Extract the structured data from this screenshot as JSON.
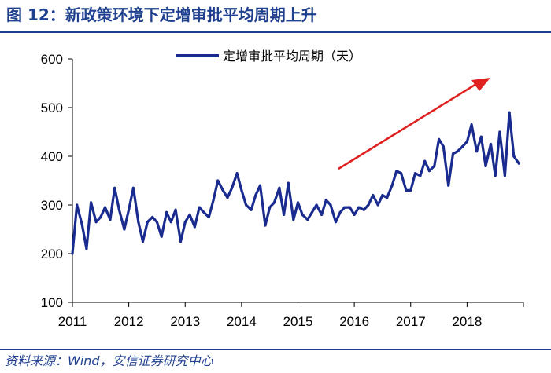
{
  "figure": {
    "title": "图 12：新政策环境下定增审批平均周期上升",
    "source": "资料来源：Wind，安信证券研究中心"
  },
  "colors": {
    "title": "#1f3f8f",
    "series": "#1a2b8f",
    "arrow": "#e02020",
    "axis": "#000000"
  },
  "chart_data": {
    "type": "line",
    "title": "",
    "xlabel": "",
    "ylabel": "",
    "ylim": [
      100,
      600
    ],
    "yticks": [
      100,
      200,
      300,
      400,
      500,
      600
    ],
    "xlim": [
      2011,
      2019
    ],
    "xticks": [
      "2011",
      "2012",
      "2013",
      "2014",
      "2015",
      "2016",
      "2017",
      "2018"
    ],
    "grid": false,
    "legend_position": "top-center",
    "annotation": "red upward trend arrow",
    "series": [
      {
        "name": "定增审批平均周期（天）",
        "x": [
          2011.0,
          2011.08,
          2011.17,
          2011.25,
          2011.33,
          2011.42,
          2011.5,
          2011.58,
          2011.67,
          2011.75,
          2011.83,
          2011.92,
          2012.0,
          2012.08,
          2012.17,
          2012.25,
          2012.33,
          2012.42,
          2012.5,
          2012.58,
          2012.67,
          2012.75,
          2012.83,
          2012.92,
          2013.0,
          2013.08,
          2013.17,
          2013.25,
          2013.33,
          2013.42,
          2013.5,
          2013.58,
          2013.67,
          2013.75,
          2013.83,
          2013.92,
          2014.0,
          2014.08,
          2014.17,
          2014.25,
          2014.33,
          2014.42,
          2014.5,
          2014.58,
          2014.67,
          2014.75,
          2014.83,
          2014.92,
          2015.0,
          2015.08,
          2015.17,
          2015.25,
          2015.33,
          2015.42,
          2015.5,
          2015.58,
          2015.67,
          2015.75,
          2015.83,
          2015.92,
          2016.0,
          2016.08,
          2016.17,
          2016.25,
          2016.33,
          2016.42,
          2016.5,
          2016.58,
          2016.67,
          2016.75,
          2016.83,
          2016.92,
          2017.0,
          2017.08,
          2017.17,
          2017.25,
          2017.33,
          2017.42,
          2017.5,
          2017.58,
          2017.67,
          2017.75,
          2017.83,
          2017.92,
          2018.0,
          2018.08,
          2018.17,
          2018.25,
          2018.33,
          2018.42,
          2018.5,
          2018.58,
          2018.67,
          2018.75,
          2018.83,
          2018.92
        ],
        "values": [
          200,
          300,
          260,
          210,
          305,
          265,
          275,
          295,
          270,
          335,
          290,
          250,
          290,
          335,
          265,
          225,
          265,
          275,
          265,
          235,
          285,
          265,
          290,
          225,
          265,
          280,
          255,
          295,
          285,
          275,
          310,
          350,
          330,
          315,
          335,
          365,
          330,
          300,
          290,
          320,
          340,
          258,
          295,
          305,
          335,
          280,
          345,
          270,
          305,
          280,
          270,
          285,
          300,
          280,
          310,
          300,
          265,
          285,
          295,
          295,
          280,
          295,
          290,
          300,
          320,
          300,
          320,
          315,
          340,
          370,
          365,
          330,
          330,
          365,
          360,
          390,
          370,
          380,
          435,
          420,
          340,
          405,
          410,
          420,
          430,
          465,
          410,
          440,
          380,
          425,
          360,
          450,
          360,
          490,
          400,
          385
        ]
      }
    ]
  }
}
